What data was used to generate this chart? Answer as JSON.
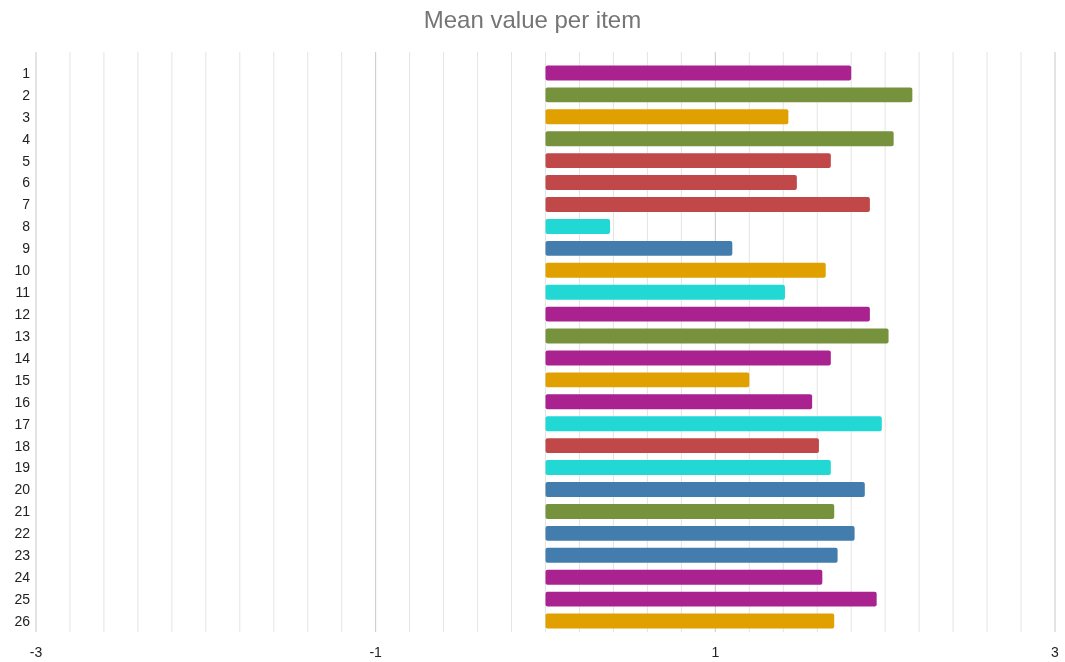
{
  "chart_data": {
    "type": "bar",
    "orientation": "horizontal",
    "title": "Mean value per item",
    "categories": [
      "1",
      "2",
      "3",
      "4",
      "5",
      "6",
      "7",
      "8",
      "9",
      "10",
      "11",
      "12",
      "13",
      "14",
      "15",
      "16",
      "17",
      "18",
      "19",
      "20",
      "21",
      "22",
      "23",
      "24",
      "25",
      "26"
    ],
    "values": [
      1.8,
      2.16,
      1.43,
      2.05,
      1.68,
      1.48,
      1.91,
      0.38,
      1.1,
      1.65,
      1.41,
      1.91,
      2.02,
      1.68,
      1.2,
      1.57,
      1.98,
      1.61,
      1.68,
      1.88,
      1.7,
      1.82,
      1.72,
      1.63,
      1.95,
      1.7
    ],
    "colors": [
      "#aa2290",
      "#77923c",
      "#e0a000",
      "#77923c",
      "#c04848",
      "#c04848",
      "#c04848",
      "#22d8d4",
      "#427dad",
      "#e0a000",
      "#22d8d4",
      "#aa2290",
      "#77923c",
      "#aa2290",
      "#e0a000",
      "#aa2290",
      "#22d8d4",
      "#c04848",
      "#22d8d4",
      "#427dad",
      "#77923c",
      "#427dad",
      "#427dad",
      "#aa2290",
      "#aa2290",
      "#e0a000"
    ],
    "xlim": [
      -3,
      3
    ],
    "xticks": [
      -3,
      {
        "value": -2.8,
        "label": null
      },
      {
        "value": -2.6,
        "label": null
      },
      {
        "value": -2.4,
        "label": null
      },
      {
        "value": -2.2,
        "label": null
      },
      {
        "value": -2,
        "label": null
      },
      {
        "value": -1.8,
        "label": null
      },
      {
        "value": -1.6,
        "label": null
      },
      {
        "value": -1.4,
        "label": null
      },
      {
        "value": -1.2,
        "label": null
      },
      -1,
      {
        "value": -0.8,
        "label": null
      },
      {
        "value": -0.6,
        "label": null
      },
      {
        "value": -0.4,
        "label": null
      },
      {
        "value": -0.2,
        "label": null
      },
      {
        "value": 0,
        "label": null
      },
      {
        "value": 0.2,
        "label": null
      },
      {
        "value": 0.4,
        "label": null
      },
      {
        "value": 0.6,
        "label": null
      },
      {
        "value": 0.8,
        "label": null
      },
      1,
      {
        "value": 1.2,
        "label": null
      },
      {
        "value": 1.4,
        "label": null
      },
      {
        "value": 1.6,
        "label": null
      },
      {
        "value": 1.8,
        "label": null
      },
      {
        "value": 2,
        "label": null
      },
      {
        "value": 2.2,
        "label": null
      },
      {
        "value": 2.4,
        "label": null
      },
      {
        "value": 2.6,
        "label": null
      },
      {
        "value": 2.8,
        "label": null
      },
      3
    ],
    "grid": "x"
  }
}
